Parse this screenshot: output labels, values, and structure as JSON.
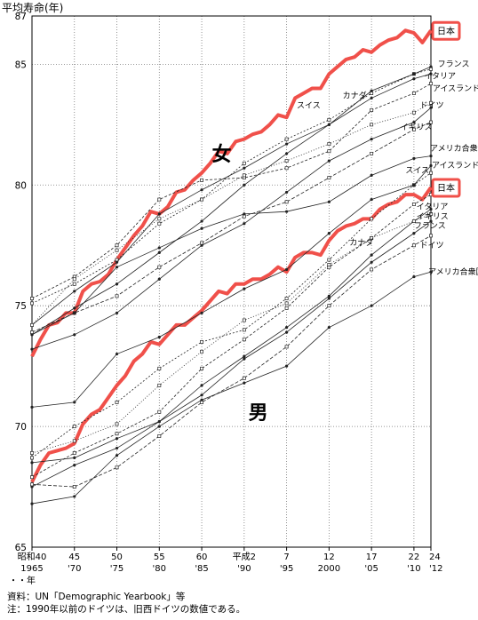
{
  "chart_data": {
    "type": "line",
    "ylabel": "平均寿命(年)",
    "ylim": [
      65,
      87
    ],
    "yticks": [
      65,
      70,
      75,
      80,
      85,
      87
    ],
    "xlim": [
      1965,
      2012
    ],
    "grid": true,
    "xticks": [
      {
        "x": 1965,
        "top": "昭和40",
        "bottom": "1965"
      },
      {
        "x": 1970,
        "top": "45",
        "bottom": "'70"
      },
      {
        "x": 1975,
        "top": "50",
        "bottom": "'75"
      },
      {
        "x": 1980,
        "top": "55",
        "bottom": "'80"
      },
      {
        "x": 1985,
        "top": "60",
        "bottom": "'85"
      },
      {
        "x": 1990,
        "top": "平成2",
        "bottom": "'90"
      },
      {
        "x": 1995,
        "top": "7",
        "bottom": "'95"
      },
      {
        "x": 2000,
        "top": "12",
        "bottom": "2000"
      },
      {
        "x": 2005,
        "top": "17",
        "bottom": "'05"
      },
      {
        "x": 2010,
        "top": "22",
        "bottom": "'10"
      },
      {
        "x": 2012,
        "top": "24",
        "bottom": "'12"
      }
    ],
    "x_unit_label": "・・年",
    "group_labels": {
      "female": "女",
      "male": "男"
    },
    "series": [
      {
        "name": "日本",
        "group": "female",
        "highlight": true,
        "x": [
          1965,
          1966,
          1967,
          1968,
          1969,
          1970,
          1971,
          1972,
          1973,
          1974,
          1975,
          1976,
          1977,
          1978,
          1979,
          1980,
          1981,
          1982,
          1983,
          1984,
          1985,
          1986,
          1987,
          1988,
          1989,
          1990,
          1991,
          1992,
          1993,
          1994,
          1995,
          1996,
          1997,
          1998,
          1999,
          2000,
          2001,
          2002,
          2003,
          2004,
          2005,
          2006,
          2007,
          2008,
          2009,
          2010,
          2011,
          2012
        ],
        "y": [
          72.9,
          73.6,
          74.2,
          74.3,
          74.7,
          74.7,
          75.6,
          75.9,
          76.0,
          76.3,
          76.9,
          77.4,
          77.9,
          78.3,
          78.9,
          78.8,
          79.1,
          79.7,
          79.8,
          80.2,
          80.5,
          80.9,
          81.4,
          81.3,
          81.8,
          81.9,
          82.1,
          82.2,
          82.5,
          82.9,
          82.8,
          83.6,
          83.8,
          84.0,
          84.0,
          84.6,
          84.9,
          85.2,
          85.3,
          85.6,
          85.5,
          85.8,
          86.0,
          86.1,
          86.4,
          86.3,
          85.9,
          86.4
        ]
      },
      {
        "name": "フランス",
        "group": "female",
        "x": [
          1965,
          1970,
          1975,
          1980,
          1985,
          1990,
          1995,
          2000,
          2005,
          2010,
          2012
        ],
        "y": [
          75.1,
          75.9,
          76.9,
          78.4,
          79.4,
          80.9,
          81.9,
          82.7,
          83.8,
          84.6,
          84.8
        ]
      },
      {
        "name": "イタリア",
        "group": "female",
        "x": [
          1965,
          1970,
          1975,
          1980,
          1985,
          1990,
          1995,
          2000,
          2005,
          2010,
          2012
        ],
        "y": [
          73.8,
          74.9,
          75.9,
          77.2,
          78.5,
          80.0,
          81.3,
          82.5,
          83.6,
          84.4,
          84.6
        ]
      },
      {
        "name": "アイスランド",
        "group": "female",
        "x": [
          1965,
          1970,
          1975,
          1980,
          1985,
          1990,
          1995,
          2000,
          2005,
          2010,
          2012
        ],
        "y": [
          75.3,
          76.2,
          77.5,
          79.4,
          80.2,
          80.3,
          80.7,
          81.4,
          83.1,
          83.8,
          84.2
        ]
      },
      {
        "name": "スイス",
        "group": "female",
        "x": [
          1965,
          1970,
          1975,
          1980,
          1985,
          1990,
          1995,
          2000,
          2005,
          2010,
          2012
        ],
        "y": [
          74.2,
          75.6,
          76.8,
          78.8,
          79.8,
          80.7,
          81.7,
          82.5,
          83.9,
          84.6,
          84.9
        ]
      },
      {
        "name": "カナダ",
        "group": "female",
        "x": [
          1965,
          1970,
          1975,
          1980,
          1985,
          1990,
          1995,
          2000,
          2005,
          2010,
          2012
        ],
        "y": [
          74.2,
          76.1,
          77.3,
          78.6,
          79.4,
          80.4,
          81.0,
          81.7,
          82.5,
          83.0,
          83.4
        ]
      },
      {
        "name": "ドイツ",
        "group": "female",
        "x": [
          1965,
          1970,
          1975,
          1980,
          1985,
          1990,
          1995,
          2000,
          2005,
          2010,
          2012
        ],
        "y": [
          73.2,
          73.8,
          74.7,
          76.1,
          77.5,
          78.4,
          79.7,
          81.0,
          81.9,
          82.6,
          83.2
        ]
      },
      {
        "name": "イギリス",
        "group": "female",
        "x": [
          1965,
          1970,
          1975,
          1980,
          1985,
          1990,
          1995,
          2000,
          2005,
          2010,
          2012
        ],
        "y": [
          73.9,
          74.7,
          75.4,
          76.6,
          77.6,
          78.7,
          79.3,
          80.3,
          81.3,
          82.3,
          82.6
        ]
      },
      {
        "name": "アメリカ合衆国",
        "group": "female",
        "x": [
          1965,
          1970,
          1975,
          1980,
          1985,
          1990,
          1995,
          2000,
          2005,
          2010,
          2012
        ],
        "y": [
          73.8,
          74.7,
          76.6,
          77.4,
          78.2,
          78.8,
          78.9,
          79.3,
          80.4,
          81.1,
          81.2
        ]
      },
      {
        "name": "日本",
        "group": "male",
        "highlight": true,
        "x": [
          1965,
          1966,
          1967,
          1968,
          1969,
          1970,
          1971,
          1972,
          1973,
          1974,
          1975,
          1976,
          1977,
          1978,
          1979,
          1980,
          1981,
          1982,
          1983,
          1984,
          1985,
          1986,
          1987,
          1988,
          1989,
          1990,
          1991,
          1992,
          1993,
          1994,
          1995,
          1996,
          1997,
          1998,
          1999,
          2000,
          2001,
          2002,
          2003,
          2004,
          2005,
          2006,
          2007,
          2008,
          2009,
          2010,
          2011,
          2012
        ],
        "y": [
          67.7,
          68.4,
          68.9,
          69.0,
          69.1,
          69.3,
          70.1,
          70.5,
          70.7,
          71.2,
          71.7,
          72.1,
          72.7,
          73.0,
          73.5,
          73.4,
          73.8,
          74.2,
          74.2,
          74.5,
          74.8,
          75.2,
          75.6,
          75.5,
          75.9,
          75.9,
          76.1,
          76.1,
          76.3,
          76.6,
          76.4,
          77.0,
          77.2,
          77.2,
          77.1,
          77.7,
          78.1,
          78.3,
          78.4,
          78.6,
          78.6,
          79.0,
          79.2,
          79.3,
          79.6,
          79.6,
          79.4,
          79.9
        ]
      },
      {
        "name": "スイス",
        "group": "male",
        "x": [
          1965,
          1970,
          1975,
          1980,
          1985,
          1990,
          1995,
          2000,
          2005,
          2010,
          2012
        ],
        "y": [
          68.7,
          70.0,
          71.0,
          72.4,
          73.5,
          74.0,
          75.3,
          76.9,
          78.6,
          80.0,
          80.5
        ]
      },
      {
        "name": "アイスランド",
        "group": "male",
        "x": [
          1965,
          1970,
          1975,
          1980,
          1985,
          1990,
          1995,
          2000,
          2005,
          2010,
          2012
        ],
        "y": [
          70.8,
          71.0,
          73.0,
          73.7,
          74.7,
          75.7,
          76.5,
          78.0,
          79.4,
          80.0,
          80.8
        ]
      },
      {
        "name": "イタリア",
        "group": "male",
        "x": [
          1965,
          1970,
          1975,
          1980,
          1985,
          1990,
          1995,
          2000,
          2005,
          2010,
          2012
        ],
        "y": [
          67.9,
          68.9,
          69.7,
          70.6,
          72.4,
          73.6,
          74.9,
          76.6,
          77.8,
          79.2,
          79.6
        ]
      },
      {
        "name": "イギリス",
        "group": "male",
        "x": [
          1965,
          1970,
          1975,
          1980,
          1985,
          1990,
          1995,
          2000,
          2005,
          2010,
          2012
        ],
        "y": [
          68.5,
          68.7,
          69.5,
          70.2,
          71.7,
          72.9,
          74.1,
          75.4,
          77.1,
          78.5,
          79.0
        ]
      },
      {
        "name": "カナダ",
        "group": "male",
        "x": [
          1965,
          1970,
          1975,
          1980,
          1985,
          1990,
          1995,
          2000,
          2005,
          2010,
          2012
        ],
        "y": [
          68.9,
          69.4,
          70.1,
          71.7,
          73.1,
          74.4,
          75.1,
          76.7,
          77.8,
          78.5,
          78.8
        ]
      },
      {
        "name": "フランス",
        "group": "male",
        "x": [
          1965,
          1970,
          1975,
          1980,
          1985,
          1990,
          1995,
          2000,
          2005,
          2010,
          2012
        ],
        "y": [
          67.5,
          68.4,
          69.1,
          70.2,
          71.3,
          72.8,
          73.9,
          75.3,
          76.8,
          78.0,
          78.5
        ]
      },
      {
        "name": "ドイツ",
        "group": "male",
        "x": [
          1965,
          1970,
          1975,
          1980,
          1985,
          1990,
          1995,
          2000,
          2005,
          2010,
          2012
        ],
        "y": [
          67.6,
          67.5,
          68.3,
          69.6,
          71.0,
          72.0,
          73.3,
          75.0,
          76.5,
          77.5,
          77.9
        ]
      },
      {
        "name": "アメリカ合衆国",
        "group": "male",
        "x": [
          1965,
          1970,
          1975,
          1980,
          1985,
          1990,
          1995,
          2000,
          2005,
          2010,
          2012
        ],
        "y": [
          66.8,
          67.1,
          68.8,
          70.0,
          71.1,
          71.8,
          72.5,
          74.1,
          75.0,
          76.2,
          76.4
        ]
      }
    ]
  },
  "footnotes": [
    "資料：UN「Demographic Yearbook」等",
    "注：1990年以前のドイツは、旧西ドイツの数値である。"
  ]
}
